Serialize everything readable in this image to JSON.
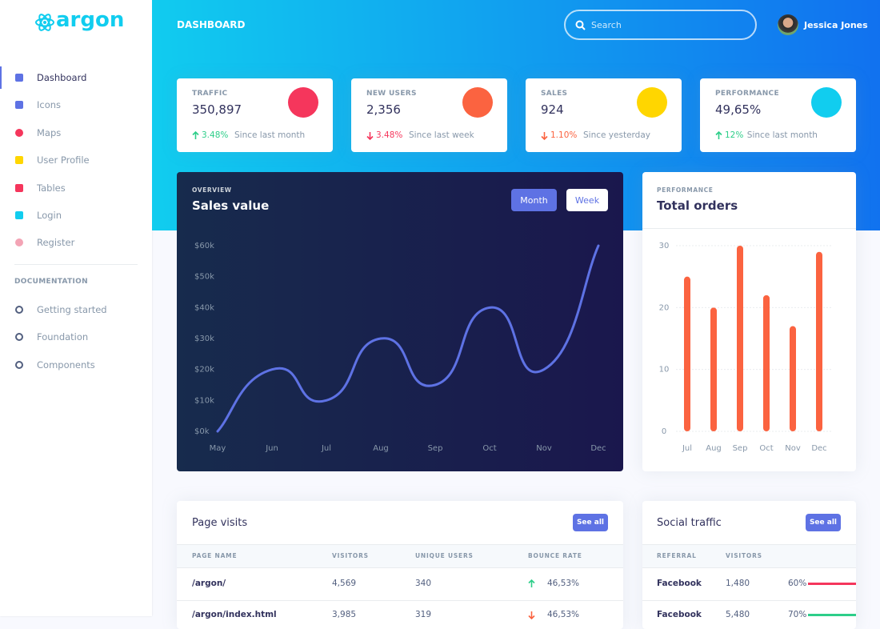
{
  "brand": "argon",
  "sidebar": {
    "items": [
      "Dashboard",
      "Icons",
      "Maps",
      "User Profile",
      "Tables",
      "Login",
      "Register"
    ],
    "active": 0,
    "icon_colors": [
      "#5e72e4",
      "#5e72e4",
      "#f5365c",
      "#ffd600",
      "#f5365c",
      "#11cdef",
      "#f3a4b5"
    ],
    "section": "DOCUMENTATION",
    "docs": [
      "Getting started",
      "Foundation",
      "Components"
    ]
  },
  "header": {
    "title": "DASHBOARD",
    "search": "Search",
    "user": "Jessica Jones"
  },
  "stats": [
    {
      "label": "TRAFFIC",
      "value": "350,897",
      "change": "3.48%",
      "direction": "up",
      "change_color": "#2dce89",
      "note": "Since last month",
      "icon_color": "#f5365c"
    },
    {
      "label": "NEW USERS",
      "value": "2,356",
      "change": "3.48%",
      "direction": "down",
      "change_color": "#f5365c",
      "note": "Since last week",
      "icon_color": "#fb6340"
    },
    {
      "label": "SALES",
      "value": "924",
      "change": "1.10%",
      "direction": "down",
      "change_color": "#fb6340",
      "note": "Since yesterday",
      "icon_color": "#ffd600"
    },
    {
      "label": "PERFORMANCE",
      "value": "49,65%",
      "change": "12%",
      "direction": "up",
      "change_color": "#2dce89",
      "note": "Since last month",
      "icon_color": "#11cdef"
    }
  ],
  "chart_data": [
    {
      "type": "line",
      "subtitle": "OVERVIEW",
      "title": "Sales value",
      "buttons": [
        "Month",
        "Week"
      ],
      "categories": [
        "May",
        "Jun",
        "Jul",
        "Aug",
        "Sep",
        "Oct",
        "Nov",
        "Dec"
      ],
      "values": [
        0,
        20,
        10,
        30,
        15,
        40,
        20,
        60
      ],
      "color": "#5e72e4",
      "ylim": [
        0,
        60
      ],
      "yticks": [
        {
          "value": 0,
          "label": "$0k"
        },
        {
          "value": 10,
          "label": "$10k"
        },
        {
          "value": 20,
          "label": "$20k"
        },
        {
          "value": 30,
          "label": "$30k"
        },
        {
          "value": 40,
          "label": "$40k"
        },
        {
          "value": 50,
          "label": "$50k"
        },
        {
          "value": 60,
          "label": "$60k"
        }
      ],
      "grid": false
    },
    {
      "type": "bar",
      "subtitle": "PERFORMANCE",
      "title": "Total orders",
      "categories": [
        "Jul",
        "Aug",
        "Sep",
        "Oct",
        "Nov",
        "Dec"
      ],
      "values": [
        25,
        20,
        30,
        22,
        17,
        29
      ],
      "color": "#fb6340",
      "ylim": [
        0,
        30
      ],
      "yticks": [
        0,
        10,
        20,
        30
      ],
      "grid": true
    }
  ],
  "page_visits": {
    "title": "Page visits",
    "button": "See all",
    "columns": [
      "PAGE NAME",
      "VISITORS",
      "UNIQUE USERS",
      "BOUNCE RATE"
    ],
    "rows": [
      [
        "/argon/",
        "4,569",
        "340",
        "46,53%"
      ],
      [
        "/argon/index.html",
        "3,985",
        "319",
        "46,53%"
      ]
    ],
    "trend": [
      "up",
      "down"
    ],
    "trend_colors": [
      "#2dce89",
      "#fb6340"
    ]
  },
  "social_traffic": {
    "title": "Social traffic",
    "button": "See all",
    "columns": [
      "REFERRAL",
      "VISITORS"
    ],
    "rows": [
      [
        "Facebook",
        "1,480",
        "60%"
      ],
      [
        "Facebook",
        "5,480",
        "70%"
      ]
    ],
    "bar_colors": [
      "#f5365c",
      "#2dce89"
    ]
  }
}
